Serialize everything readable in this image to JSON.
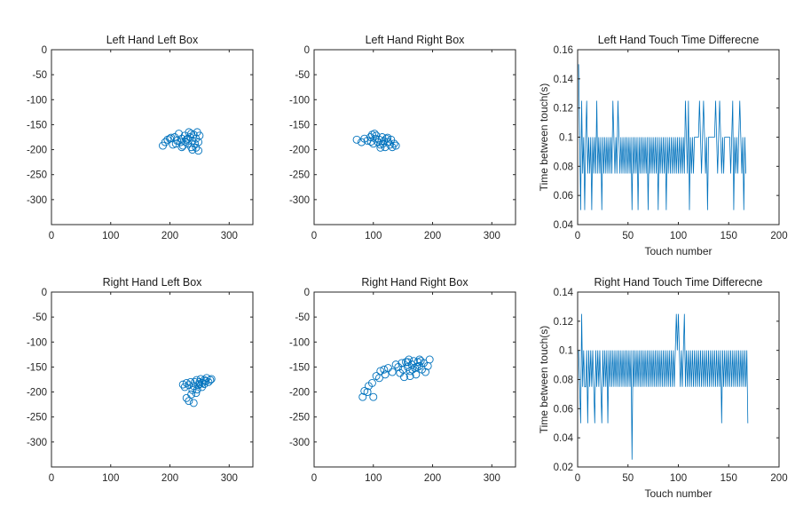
{
  "chart_data": [
    {
      "type": "scatter",
      "title": "Left Hand Left Box",
      "xlim": [
        0,
        340
      ],
      "ylim": [
        -350,
        0
      ],
      "xticks": [
        "0",
        "100",
        "200",
        "300"
      ],
      "yticks": [
        "0",
        "-50",
        "-100",
        "-150",
        "-200",
        "-250",
        "-300"
      ],
      "marker": "circle-open",
      "color": "#0072BD",
      "points": [
        [
          188,
          -192
        ],
        [
          192,
          -185
        ],
        [
          196,
          -180
        ],
        [
          200,
          -178
        ],
        [
          205,
          -190
        ],
        [
          208,
          -175
        ],
        [
          212,
          -182
        ],
        [
          215,
          -168
        ],
        [
          218,
          -185
        ],
        [
          220,
          -178
        ],
        [
          222,
          -192
        ],
        [
          225,
          -172
        ],
        [
          228,
          -180
        ],
        [
          230,
          -188
        ],
        [
          232,
          -165
        ],
        [
          234,
          -175
        ],
        [
          236,
          -195
        ],
        [
          238,
          -182
        ],
        [
          240,
          -170
        ],
        [
          242,
          -188
        ],
        [
          244,
          -178
        ],
        [
          246,
          -165
        ],
        [
          248,
          -185
        ],
        [
          250,
          -172
        ],
        [
          238,
          -200
        ],
        [
          244,
          -196
        ],
        [
          226,
          -184
        ],
        [
          210,
          -188
        ],
        [
          202,
          -176
        ],
        [
          236,
          -168
        ],
        [
          230,
          -178
        ],
        [
          248,
          -202
        ],
        [
          220,
          -195
        ]
      ]
    },
    {
      "type": "scatter",
      "title": "Left Hand Right Box",
      "xlim": [
        0,
        340
      ],
      "ylim": [
        -350,
        0
      ],
      "xticks": [
        "0",
        "100",
        "200",
        "300"
      ],
      "yticks": [
        "0",
        "-50",
        "-100",
        "-150",
        "-200",
        "-250",
        "-300"
      ],
      "marker": "circle-open",
      "color": "#0072BD",
      "points": [
        [
          72,
          -180
        ],
        [
          80,
          -185
        ],
        [
          85,
          -178
        ],
        [
          90,
          -182
        ],
        [
          95,
          -175
        ],
        [
          98,
          -170
        ],
        [
          100,
          -188
        ],
        [
          103,
          -178
        ],
        [
          105,
          -172
        ],
        [
          108,
          -185
        ],
        [
          110,
          -180
        ],
        [
          112,
          -190
        ],
        [
          115,
          -175
        ],
        [
          118,
          -183
        ],
        [
          120,
          -195
        ],
        [
          122,
          -178
        ],
        [
          125,
          -185
        ],
        [
          128,
          -190
        ],
        [
          130,
          -180
        ],
        [
          132,
          -195
        ],
        [
          135,
          -188
        ],
        [
          138,
          -192
        ],
        [
          102,
          -168
        ],
        [
          112,
          -196
        ],
        [
          124,
          -176
        ],
        [
          96,
          -184
        ],
        [
          116,
          -188
        ]
      ]
    },
    {
      "type": "line",
      "title": "Left Hand Touch Time Differecne",
      "xlabel": "Touch number",
      "ylabel": "Time between touch(s)",
      "xlim": [
        0,
        200
      ],
      "ylim": [
        0.04,
        0.16
      ],
      "xticks": [
        "0",
        "50",
        "100",
        "150",
        "200"
      ],
      "yticks": [
        "0.04",
        "0.06",
        "0.08",
        "0.1",
        "0.12",
        "0.14",
        "0.16"
      ],
      "color": "#0072BD",
      "series": [
        {
          "y": [
            0.15,
            0.1,
            0.05,
            0.125,
            0.075,
            0.1,
            0.05,
            0.1,
            0.125,
            0.075,
            0.1,
            0.075,
            0.1,
            0.05,
            0.1,
            0.075,
            0.1,
            0.075,
            0.125,
            0.075,
            0.1,
            0.075,
            0.1,
            0.05,
            0.1,
            0.075,
            0.1,
            0.075,
            0.1,
            0.075,
            0.1,
            0.075,
            0.1,
            0.075,
            0.125,
            0.1,
            0.075,
            0.1,
            0.075,
            0.125,
            0.1,
            0.075,
            0.1,
            0.075,
            0.1,
            0.075,
            0.1,
            0.075,
            0.1,
            0.075,
            0.1,
            0.075,
            0.1,
            0.05,
            0.1,
            0.075,
            0.1,
            0.075,
            0.1,
            0.05,
            0.1,
            0.075,
            0.1,
            0.075,
            0.1,
            0.075,
            0.1,
            0.075,
            0.1,
            0.05,
            0.1,
            0.075,
            0.1,
            0.075,
            0.1,
            0.075,
            0.1,
            0.075,
            0.1,
            0.05,
            0.1,
            0.075,
            0.1,
            0.075,
            0.1,
            0.075,
            0.1,
            0.05,
            0.1,
            0.075,
            0.1,
            0.075,
            0.1,
            0.075,
            0.1,
            0.075,
            0.1,
            0.075,
            0.1,
            0.075,
            0.1,
            0.075,
            0.1,
            0.075,
            0.1,
            0.075,
            0.125,
            0.1,
            0.075,
            0.125,
            0.05,
            0.1,
            0.075,
            0.1,
            0.075,
            0.1,
            0.1,
            0.1,
            0.1,
            0.1,
            0.125,
            0.1,
            0.075,
            0.1,
            0.125,
            0.1,
            0.075,
            0.1,
            0.05,
            0.1,
            0.1,
            0.1,
            0.1,
            0.1,
            0.1,
            0.1,
            0.125,
            0.1,
            0.075,
            0.1,
            0.125,
            0.1,
            0.075,
            0.1,
            0.075,
            0.1,
            0.1,
            0.1,
            0.1,
            0.1,
            0.1,
            0.075,
            0.1,
            0.125,
            0.05,
            0.1,
            0.075,
            0.1,
            0.075,
            0.1,
            0.125,
            0.1,
            0.075,
            0.1,
            0.05,
            0.1,
            0.075
          ]
        }
      ]
    },
    {
      "type": "scatter",
      "title": "Right Hand Left Box",
      "xlim": [
        0,
        340
      ],
      "ylim": [
        -350,
        0
      ],
      "xticks": [
        "0",
        "100",
        "200",
        "300"
      ],
      "yticks": [
        "0",
        "-50",
        "-100",
        "-150",
        "-200",
        "-250",
        "-300"
      ],
      "marker": "circle-open",
      "color": "#0072BD",
      "points": [
        [
          222,
          -185
        ],
        [
          225,
          -190
        ],
        [
          228,
          -182
        ],
        [
          232,
          -186
        ],
        [
          235,
          -180
        ],
        [
          238,
          -196
        ],
        [
          240,
          -188
        ],
        [
          242,
          -180
        ],
        [
          245,
          -176
        ],
        [
          248,
          -186
        ],
        [
          250,
          -180
        ],
        [
          252,
          -174
        ],
        [
          255,
          -182
        ],
        [
          258,
          -176
        ],
        [
          260,
          -178
        ],
        [
          262,
          -172
        ],
        [
          265,
          -180
        ],
        [
          268,
          -176
        ],
        [
          270,
          -174
        ],
        [
          228,
          -212
        ],
        [
          232,
          -218
        ],
        [
          240,
          -222
        ],
        [
          236,
          -205
        ],
        [
          244,
          -202
        ],
        [
          246,
          -195
        ],
        [
          254,
          -190
        ],
        [
          250,
          -184
        ],
        [
          258,
          -184
        ]
      ]
    },
    {
      "type": "scatter",
      "title": "Right Hand Right Box",
      "xlim": [
        0,
        340
      ],
      "ylim": [
        -350,
        0
      ],
      "xticks": [
        "0",
        "100",
        "200",
        "300"
      ],
      "yticks": [
        "0",
        "-50",
        "-100",
        "-150",
        "-200",
        "-250",
        "-300"
      ],
      "marker": "circle-open",
      "color": "#0072BD",
      "points": [
        [
          82,
          -210
        ],
        [
          85,
          -198
        ],
        [
          90,
          -200
        ],
        [
          92,
          -188
        ],
        [
          98,
          -182
        ],
        [
          100,
          -210
        ],
        [
          105,
          -168
        ],
        [
          110,
          -172
        ],
        [
          112,
          -158
        ],
        [
          118,
          -155
        ],
        [
          120,
          -165
        ],
        [
          125,
          -152
        ],
        [
          132,
          -160
        ],
        [
          138,
          -145
        ],
        [
          142,
          -150
        ],
        [
          145,
          -162
        ],
        [
          148,
          -142
        ],
        [
          150,
          -155
        ],
        [
          152,
          -170
        ],
        [
          155,
          -140
        ],
        [
          158,
          -150
        ],
        [
          160,
          -135
        ],
        [
          162,
          -158
        ],
        [
          165,
          -145
        ],
        [
          168,
          -138
        ],
        [
          170,
          -152
        ],
        [
          172,
          -165
        ],
        [
          175,
          -140
        ],
        [
          178,
          -148
        ],
        [
          180,
          -138
        ],
        [
          182,
          -155
        ],
        [
          185,
          -142
        ],
        [
          188,
          -160
        ],
        [
          192,
          -148
        ],
        [
          195,
          -135
        ],
        [
          178,
          -135
        ],
        [
          162,
          -168
        ],
        [
          158,
          -140
        ],
        [
          166,
          -155
        ],
        [
          174,
          -150
        ]
      ]
    },
    {
      "type": "line",
      "title": "Right Hand Touch Time Differecne",
      "xlabel": "Touch number",
      "ylabel": "Time between touch(s)",
      "xlim": [
        0,
        200
      ],
      "ylim": [
        0.02,
        0.14
      ],
      "xticks": [
        "0",
        "50",
        "100",
        "150",
        "200"
      ],
      "yticks": [
        "0.02",
        "0.04",
        "0.06",
        "0.08",
        "0.1",
        "0.12",
        "0.14"
      ],
      "color": "#0072BD",
      "series": [
        {
          "y": [
            0.1,
            0.075,
            0.05,
            0.125,
            0.075,
            0.1,
            0.075,
            0.075,
            0.1,
            0.05,
            0.1,
            0.075,
            0.1,
            0.075,
            0.1,
            0.075,
            0.05,
            0.1,
            0.075,
            0.1,
            0.075,
            0.1,
            0.075,
            0.05,
            0.1,
            0.075,
            0.1,
            0.075,
            0.1,
            0.05,
            0.1,
            0.075,
            0.1,
            0.075,
            0.1,
            0.075,
            0.1,
            0.075,
            0.1,
            0.075,
            0.1,
            0.075,
            0.1,
            0.075,
            0.1,
            0.075,
            0.1,
            0.075,
            0.1,
            0.075,
            0.1,
            0.075,
            0.1,
            0.025,
            0.1,
            0.075,
            0.1,
            0.075,
            0.1,
            0.075,
            0.1,
            0.075,
            0.1,
            0.075,
            0.1,
            0.075,
            0.1,
            0.075,
            0.1,
            0.075,
            0.1,
            0.075,
            0.1,
            0.075,
            0.1,
            0.075,
            0.1,
            0.075,
            0.1,
            0.075,
            0.1,
            0.075,
            0.1,
            0.075,
            0.1,
            0.075,
            0.1,
            0.075,
            0.1,
            0.075,
            0.1,
            0.075,
            0.1,
            0.075,
            0.1,
            0.075,
            0.1,
            0.125,
            0.1,
            0.125,
            0.1,
            0.075,
            0.1,
            0.075,
            0.1,
            0.125,
            0.075,
            0.1,
            0.075,
            0.1,
            0.075,
            0.1,
            0.075,
            0.1,
            0.075,
            0.1,
            0.075,
            0.1,
            0.075,
            0.1,
            0.075,
            0.1,
            0.075,
            0.1,
            0.075,
            0.1,
            0.075,
            0.1,
            0.075,
            0.1,
            0.075,
            0.1,
            0.075,
            0.1,
            0.075,
            0.1,
            0.075,
            0.1,
            0.075,
            0.1,
            0.075,
            0.1,
            0.05,
            0.1,
            0.075,
            0.1,
            0.075,
            0.1,
            0.075,
            0.1,
            0.075,
            0.1,
            0.075,
            0.1,
            0.075,
            0.1,
            0.075,
            0.1,
            0.075,
            0.1,
            0.075,
            0.1,
            0.075,
            0.1,
            0.075,
            0.1,
            0.075,
            0.1,
            0.05
          ]
        }
      ]
    }
  ]
}
